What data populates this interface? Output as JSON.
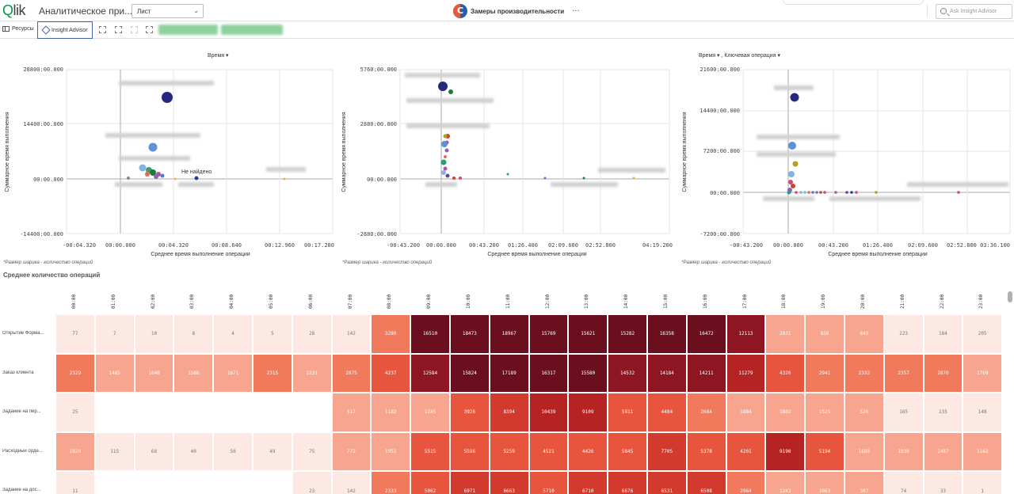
{
  "app": {
    "logo_q": "Q",
    "logo_rest": "lik",
    "title": "Аналитическое при...",
    "sheet_select": "Лист",
    "center_title": "Замеры производительности",
    "more": "···",
    "ask_placeholder": "Ask Insight Advisor"
  },
  "toolbar": {
    "resources": "Ресурсы",
    "insight_advisor": "Insight Advisor"
  },
  "charts": [
    {
      "dim_label": "Время",
      "dim_label2": "",
      "y_axis": "Суммарное время выполнения",
      "x_axis": "Среднее время выполнение операции",
      "y_ticks": [
        "28800:00.000",
        "14400:00.000",
        "00:00.000",
        "-14400:00.000"
      ],
      "x_ticks": [
        "-00:04.320",
        "00:00.000",
        "00:04.320",
        "00:08.640",
        "00:12.960",
        "00:17.280"
      ],
      "note": "*Размер шарика - количество операций",
      "annotation": "Не найдено"
    },
    {
      "dim_label": "",
      "dim_label2": "",
      "y_axis": "Суммарное время выполнения",
      "x_axis": "Среднее время выполнение операции",
      "y_ticks": [
        "5760:00.000",
        "2880:00.000",
        "00:00.000",
        "-2880:00.000"
      ],
      "x_ticks": [
        "-00:43.200",
        "00:00.000",
        "00:43.200",
        "01:26.400",
        "02:09.600",
        "02:52.800",
        "04:19.200"
      ],
      "note": "*Размер шарика - количество операций",
      "annotation": ""
    },
    {
      "dim_label": "Время",
      "dim_label2": ", Ключевая операция",
      "y_axis": "Суммарное время выполнения",
      "x_axis": "Среднее время выполнение операции",
      "y_ticks": [
        "21600:00.000",
        "14400:00.000",
        "7200:00.000",
        "00:00.000",
        "-7200:00.000"
      ],
      "x_ticks": [
        "-00:43.200",
        "00:00.000",
        "00:43.200",
        "01:26.400",
        "02:09.600",
        "02:52.800 03:36.100"
      ],
      "note": "*Размер шарика - количество операций",
      "annotation": ""
    }
  ],
  "heatmap": {
    "title": "Среднее количество операций",
    "hours": [
      "00:00",
      "01:00",
      "02:00",
      "03:00",
      "04:00",
      "05:00",
      "06:00",
      "07:00",
      "08:00",
      "09:00",
      "10:00",
      "11:00",
      "12:00",
      "13:00",
      "14:00",
      "15:00",
      "16:00",
      "17:00",
      "18:00",
      "19:00",
      "20:00",
      "21:00",
      "22:00",
      "23:00"
    ],
    "rows": [
      {
        "label": "Открытие Форма...",
        "values": [
          "77",
          "7",
          "10",
          "8",
          "4",
          "5",
          "28",
          "142",
          "3280",
          "16510",
          "18473",
          "18967",
          "15769",
          "15621",
          "15282",
          "16358",
          "16472",
          "12113",
          "2031",
          "838",
          "843",
          "223",
          "184",
          "205"
        ]
      },
      {
        "label": "Заказ клиента",
        "values": [
          "2329",
          "1485",
          "1640",
          "1586",
          "1671",
          "2315",
          "2231",
          "2975",
          "4237",
          "12584",
          "15824",
          "17189",
          "16317",
          "15580",
          "14532",
          "14184",
          "14211",
          "11279",
          "4320",
          "2941",
          "2332",
          "2357",
          "2870",
          "1769"
        ]
      },
      {
        "label": "Задание на пер...",
        "values": [
          "25",
          "",
          "",
          "",
          "",
          "",
          "",
          "517",
          "1182",
          "1245",
          "3926",
          "8394",
          "10439",
          "9109",
          "5911",
          "4484",
          "2684",
          "1884",
          "1802",
          "1525",
          "526",
          "165",
          "135",
          "148"
        ]
      },
      {
        "label": "Расходный орде...",
        "values": [
          "1020",
          "115",
          "68",
          "40",
          "50",
          "49",
          "75",
          "772",
          "1951",
          "5515",
          "5596",
          "5259",
          "4521",
          "4426",
          "5845",
          "7705",
          "5378",
          "4201",
          "9190",
          "5194",
          "1680",
          "1830",
          "1487",
          "1162"
        ]
      },
      {
        "label": "Задание на дос...",
        "values": [
          "11",
          "",
          "",
          "",
          "",
          "",
          "23",
          "142",
          "2333",
          "5062",
          "6971",
          "6663",
          "5710",
          "6710",
          "6676",
          "6531",
          "6508",
          "2964",
          "1243",
          "1063",
          "307",
          "74",
          "33",
          "1"
        ]
      }
    ]
  }
}
